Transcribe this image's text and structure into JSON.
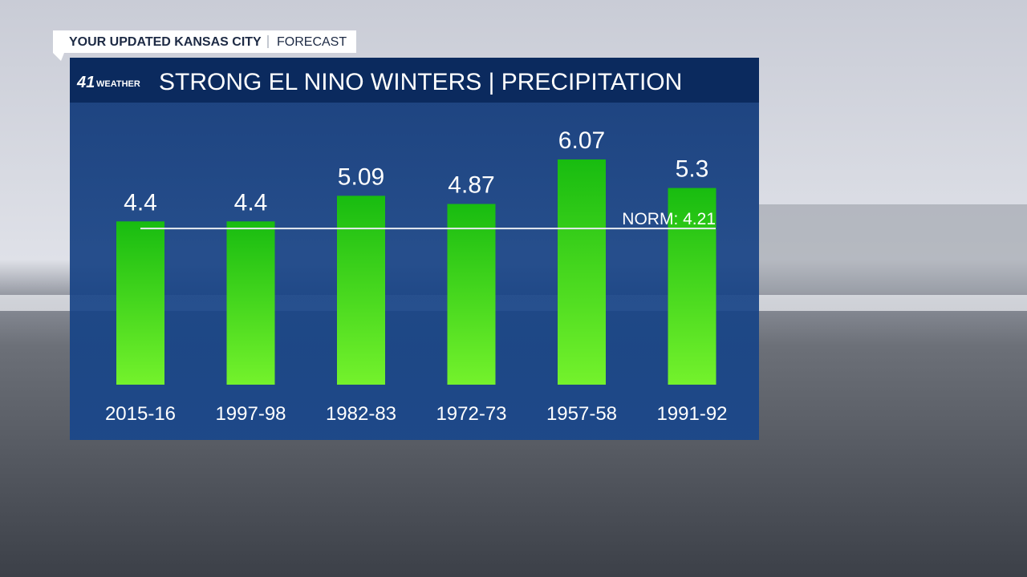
{
  "header": {
    "title": "YOUR UPDATED KANSAS CITY",
    "subtitle": "FORECAST"
  },
  "logo": {
    "number": "41",
    "text": "WEATHER"
  },
  "chart_data": {
    "type": "bar",
    "title": "STRONG EL NINO WINTERS | PRECIPITATION",
    "categories": [
      "2015-16",
      "1997-98",
      "1982-83",
      "1972-73",
      "1957-58",
      "1991-92"
    ],
    "values": [
      4.4,
      4.4,
      5.09,
      4.87,
      6.07,
      5.3
    ],
    "color": "#18bc10",
    "norm": {
      "value": 4.21,
      "label": "NORM: 4.21"
    }
  }
}
